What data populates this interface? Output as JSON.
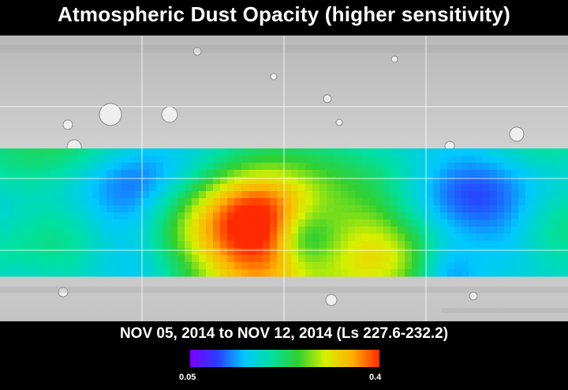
{
  "header": {
    "title": "Atmospheric Dust Opacity (higher sensitivity)"
  },
  "footer": {
    "date_range": "NOV 05, 2014 to NOV 12, 2014 (Ls 227.6-232.2)"
  },
  "legend": {
    "min_label": "0.05",
    "max_label": "0.4",
    "colormap": [
      "#7a00ff",
      "#2a3cff",
      "#00c8ff",
      "#00e0a0",
      "#30d030",
      "#d8f000",
      "#ffb000",
      "#ff2a00"
    ]
  },
  "map": {
    "basemap": "grayscale-shaded-relief",
    "data_band": "dust-opacity-overlay",
    "colors": {
      "gray": "#d2d2d2",
      "grid": "#ffffff"
    }
  }
}
